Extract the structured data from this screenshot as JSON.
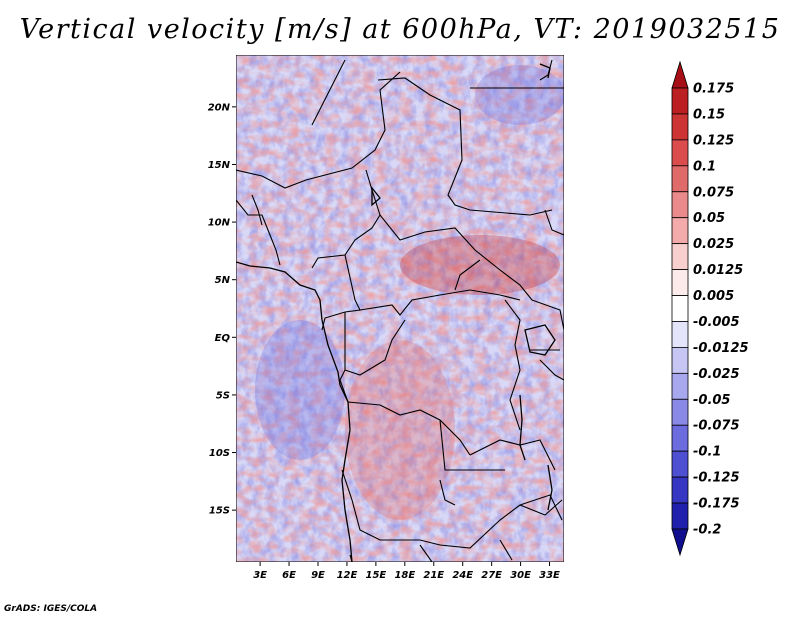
{
  "title": "Vertical velocity [m/s] at 600hPa, VT: 2019032515",
  "footer": "GrADS: IGES/COLA",
  "map": {
    "lat_labels": [
      "20N",
      "15N",
      "10N",
      "5N",
      "EQ",
      "5S",
      "10S",
      "15S"
    ],
    "lat_values": [
      20,
      15,
      10,
      5,
      0,
      -5,
      -10,
      -15
    ],
    "lon_labels": [
      "3E",
      "6E",
      "9E",
      "12E",
      "15E",
      "18E",
      "21E",
      "24E",
      "27E",
      "30E",
      "33E"
    ],
    "lon_values": [
      3,
      6,
      9,
      12,
      15,
      18,
      21,
      24,
      27,
      30,
      33
    ],
    "lat_range": [
      -19.5,
      24.5
    ],
    "lon_range": [
      0.5,
      34.5
    ]
  },
  "colorbar": {
    "labels": [
      "0.175",
      "0.15",
      "0.125",
      "0.1",
      "0.075",
      "0.05",
      "0.025",
      "0.0125",
      "0.005",
      "-0.005",
      "-0.0125",
      "-0.025",
      "-0.05",
      "-0.075",
      "-0.1",
      "-0.125",
      "-0.175",
      "-0.2"
    ],
    "colors": [
      "#a50f15",
      "#bb1f22",
      "#cc3333",
      "#db4c4c",
      "#e06a6a",
      "#ea8a8a",
      "#f2aaaa",
      "#f7cfcf",
      "#fcebeb",
      "#ffffff",
      "#e4e4fb",
      "#c6c6f4",
      "#a8a8ee",
      "#8a8ae6",
      "#6c6cde",
      "#4f4fd2",
      "#3636c2",
      "#2020ad",
      "#10108f"
    ]
  }
}
